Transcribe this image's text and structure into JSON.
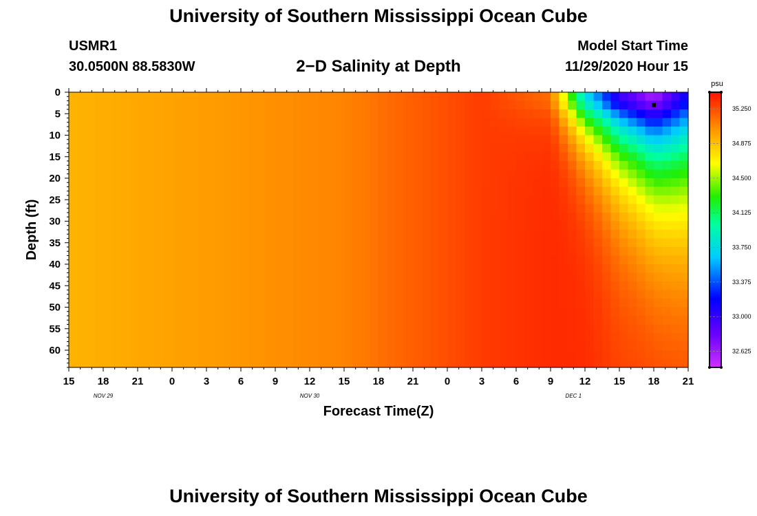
{
  "header": {
    "title": "University of Southern Mississippi Ocean Cube",
    "station_id": "USMR1",
    "station_coords": "30.0500N 88.5830W",
    "plot_title": "2−D Salinity at Depth",
    "model_start_label": "Model Start Time",
    "model_start_value": "11/29/2020 Hour 15"
  },
  "footer": {
    "title": "University of Southern Mississippi Ocean Cube"
  },
  "chart_data": {
    "type": "heatmap",
    "title": "2-D Salinity at Depth",
    "xlabel": "Forecast Time(Z)",
    "ylabel": "Depth (ft)",
    "x_hours_range": [
      0,
      54
    ],
    "y_range": [
      0,
      64
    ],
    "y_ticks": [
      "0",
      "5",
      "10",
      "15",
      "20",
      "25",
      "30",
      "35",
      "40",
      "45",
      "50",
      "55",
      "60"
    ],
    "x_ticks": [
      "15",
      "18",
      "21",
      "0",
      "3",
      "6",
      "9",
      "12",
      "15",
      "18",
      "21",
      "0",
      "3",
      "6",
      "9",
      "12",
      "15",
      "18",
      "21"
    ],
    "date_labels": [
      {
        "label": "NOV  29",
        "hour": 3
      },
      {
        "label": "NOV  30",
        "hour": 21
      },
      {
        "label": "DEC  1",
        "hour": 44
      }
    ],
    "colorbar": {
      "unit": "psu",
      "min": 32.45,
      "max": 35.43,
      "tick_values": [
        35.25,
        34.875,
        34.5,
        34.125,
        33.75,
        33.375,
        33.0,
        32.625
      ],
      "tick_labels": [
        "35.250",
        "34.875",
        "34.500",
        "34.125",
        "33.750",
        "33.375",
        "33.000",
        "32.625"
      ]
    },
    "salinity_profile": [
      {
        "hour": 0,
        "surface": 34.92,
        "bottom": 34.92
      },
      {
        "hour": 12,
        "surface": 35.0,
        "bottom": 35.0
      },
      {
        "hour": 24,
        "surface": 35.08,
        "bottom": 35.08
      },
      {
        "hour": 36,
        "surface": 35.3,
        "bottom": 35.3
      },
      {
        "hour": 42,
        "surface": 35.15,
        "bottom": 35.35
      },
      {
        "hour": 45,
        "surface": 33.8,
        "bottom": 35.35
      },
      {
        "hour": 48,
        "surface": 33.0,
        "bottom": 35.3
      },
      {
        "hour": 51,
        "surface": 32.6,
        "bottom": 35.33
      },
      {
        "hour": 54,
        "surface": 33.2,
        "bottom": 35.35
      }
    ],
    "marker": {
      "hour": 51,
      "depth": 3
    }
  }
}
